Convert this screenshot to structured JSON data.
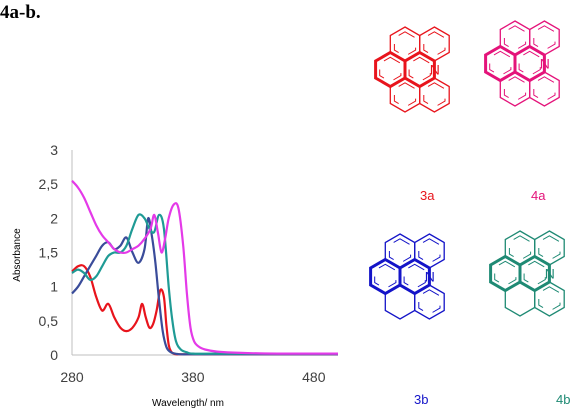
{
  "heading": "4a-b.",
  "chart_data": {
    "type": "line",
    "title": "",
    "xlabel": "Wavelength/ nm",
    "ylabel": "Absorbance",
    "xlim": [
      280,
      500
    ],
    "ylim": [
      0,
      3
    ],
    "xticks": [
      280,
      380,
      480
    ],
    "xtick_labels": [
      "280",
      "380",
      "480"
    ],
    "yticks": [
      0,
      0.5,
      1,
      1.5,
      2,
      2.5,
      3
    ],
    "ytick_labels": [
      "0",
      "0,5",
      "1",
      "1,5",
      "2",
      "2,5",
      "3"
    ],
    "grid": false,
    "legend": false,
    "series": [
      {
        "color": "#e8141c",
        "x": [
          280,
          285,
          290,
          295,
          300,
          305,
          310,
          315,
          320,
          325,
          330,
          335,
          338,
          341,
          344,
          347,
          350,
          353,
          356,
          358,
          360,
          362,
          364,
          366,
          370,
          380,
          400,
          450,
          500
        ],
        "y": [
          1.22,
          1.3,
          1.3,
          1.15,
          0.85,
          0.65,
          0.75,
          0.55,
          0.4,
          0.35,
          0.4,
          0.55,
          0.75,
          0.55,
          0.4,
          0.45,
          0.65,
          0.95,
          0.85,
          0.45,
          0.15,
          0.05,
          0.02,
          0.01,
          0.01,
          0.01,
          0.01,
          0.01,
          0.01
        ]
      },
      {
        "color": "#3a4c9a",
        "x": [
          280,
          285,
          290,
          295,
          300,
          305,
          310,
          315,
          320,
          325,
          330,
          335,
          340,
          343,
          346,
          349,
          352,
          355,
          358,
          361,
          365,
          370,
          380,
          400,
          450,
          500
        ],
        "y": [
          0.9,
          1.0,
          1.15,
          1.3,
          1.45,
          1.6,
          1.65,
          1.55,
          1.6,
          1.72,
          1.5,
          1.35,
          1.55,
          2.0,
          1.75,
          1.35,
          0.8,
          0.35,
          0.12,
          0.05,
          0.02,
          0.01,
          0.01,
          0.01,
          0.01,
          0.01
        ]
      },
      {
        "color": "#1f9b95",
        "x": [
          280,
          285,
          290,
          295,
          300,
          305,
          310,
          315,
          320,
          325,
          330,
          335,
          340,
          344,
          348,
          352,
          356,
          360,
          363,
          366,
          370,
          375,
          380,
          400,
          450,
          500
        ],
        "y": [
          1.2,
          1.25,
          1.2,
          1.1,
          1.15,
          1.3,
          1.45,
          1.5,
          1.5,
          1.6,
          1.85,
          2.05,
          2.0,
          1.85,
          1.8,
          2.05,
          1.85,
          1.0,
          0.5,
          0.2,
          0.08,
          0.04,
          0.02,
          0.02,
          0.02,
          0.02
        ]
      },
      {
        "color": "#e43ae8",
        "x": [
          280,
          285,
          290,
          295,
          300,
          305,
          310,
          315,
          320,
          325,
          330,
          335,
          340,
          345,
          348,
          351,
          354,
          357,
          360,
          364,
          368,
          372,
          375,
          378,
          381,
          385,
          390,
          400,
          420,
          450,
          500
        ],
        "y": [
          2.55,
          2.45,
          2.3,
          2.1,
          1.9,
          1.75,
          1.65,
          1.55,
          1.5,
          1.5,
          1.55,
          1.6,
          1.7,
          1.85,
          2.05,
          1.8,
          1.5,
          1.7,
          2.0,
          2.2,
          2.15,
          1.6,
          0.9,
          0.4,
          0.2,
          0.12,
          0.08,
          0.05,
          0.03,
          0.02,
          0.02
        ]
      }
    ]
  },
  "molecules": [
    {
      "id": "3a",
      "label": "3a",
      "color": "#e8141c"
    },
    {
      "id": "4a",
      "label": "4a",
      "color": "#e4137a"
    },
    {
      "id": "3b",
      "label": "3b",
      "color": "#1414c8"
    },
    {
      "id": "4b",
      "label": "4b",
      "color": "#1f8a74"
    }
  ],
  "atom_label": "N"
}
